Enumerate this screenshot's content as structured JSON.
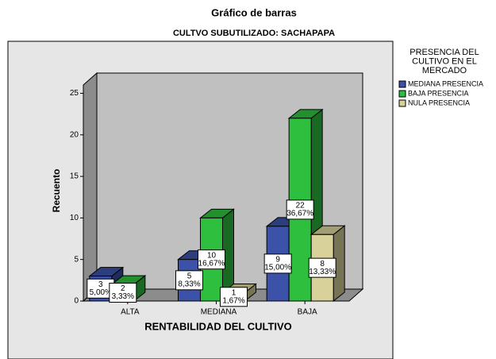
{
  "chart_data": {
    "type": "bar3d",
    "title": "Gráfico de barras",
    "subtitle": "CULTVO SUBUTILIZADO: SACHAPAPA",
    "y_label": "Recuento",
    "x_label": "RENTABILIDAD DEL CULTIVO",
    "legend_title": [
      "PRESENCIA DEL",
      "CULTIVO EN EL",
      "MERCADO"
    ],
    "legend_position": "right",
    "categories": [
      "ALTA",
      "MEDIANA",
      "BAJA"
    ],
    "series": [
      {
        "name": "MEDIANA PRESENCIA",
        "color": "#3b52a8",
        "values": [
          3,
          5,
          9
        ],
        "percent_labels": [
          "5,00%",
          "8,33%",
          "15,00%"
        ]
      },
      {
        "name": "BAJA PRESENCIA",
        "color": "#2fbf3e",
        "values": [
          2,
          10,
          22
        ],
        "percent_labels": [
          "3,33%",
          "16,67%",
          "36,67%"
        ]
      },
      {
        "name": "NULA PRESENCIA",
        "color": "#d8d29a",
        "values": [
          null,
          1,
          8
        ],
        "percent_labels": [
          null,
          "1,67%",
          "13,33%"
        ]
      }
    ],
    "ylim": [
      0,
      26
    ],
    "yticks": [
      0,
      5,
      10,
      15,
      20,
      25
    ],
    "grid": false
  }
}
